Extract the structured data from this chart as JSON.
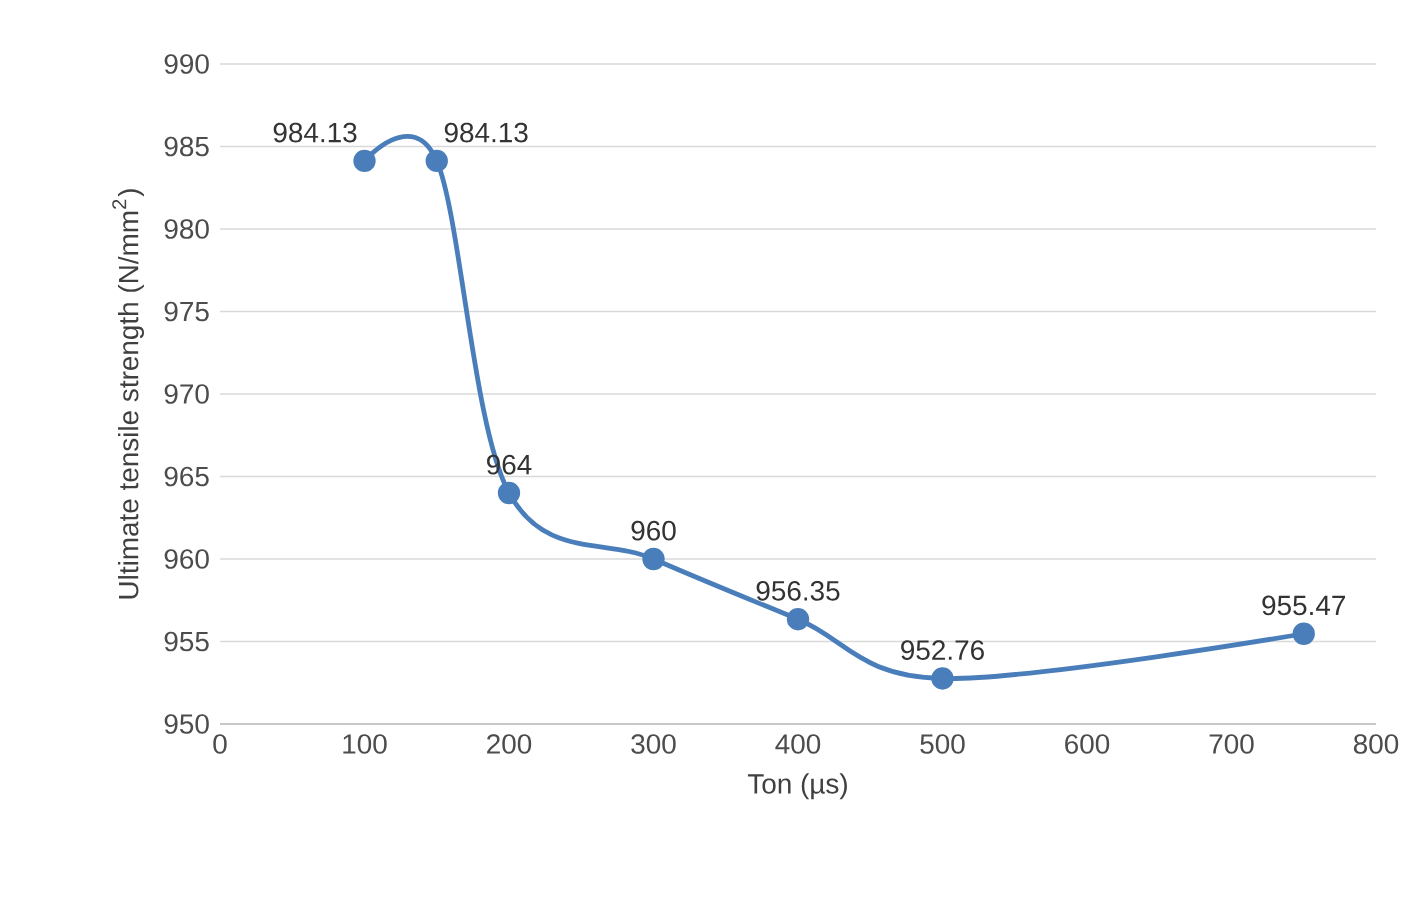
{
  "chart_data": {
    "type": "line",
    "xlabel": "Ton (µs)",
    "ylabel": "Ultimate tensile strength (N/mm$^{2}$)",
    "x": [
      100,
      150,
      200,
      300,
      400,
      500,
      750
    ],
    "series": [
      {
        "color": "#4a7ebb",
        "values": [
          984.13,
          984.13,
          964,
          960,
          956.35,
          952.76,
          955.47
        ]
      }
    ],
    "xlim": [
      0,
      800
    ],
    "xticks": [
      0,
      100,
      200,
      300,
      400,
      500,
      600,
      700,
      800
    ],
    "ylim": [
      950,
      990
    ],
    "yticks": [
      950,
      955,
      960,
      965,
      970,
      975,
      980,
      985,
      990
    ],
    "grid": "y",
    "marker": "circle",
    "line_style": "solid",
    "data_labels": true
  }
}
